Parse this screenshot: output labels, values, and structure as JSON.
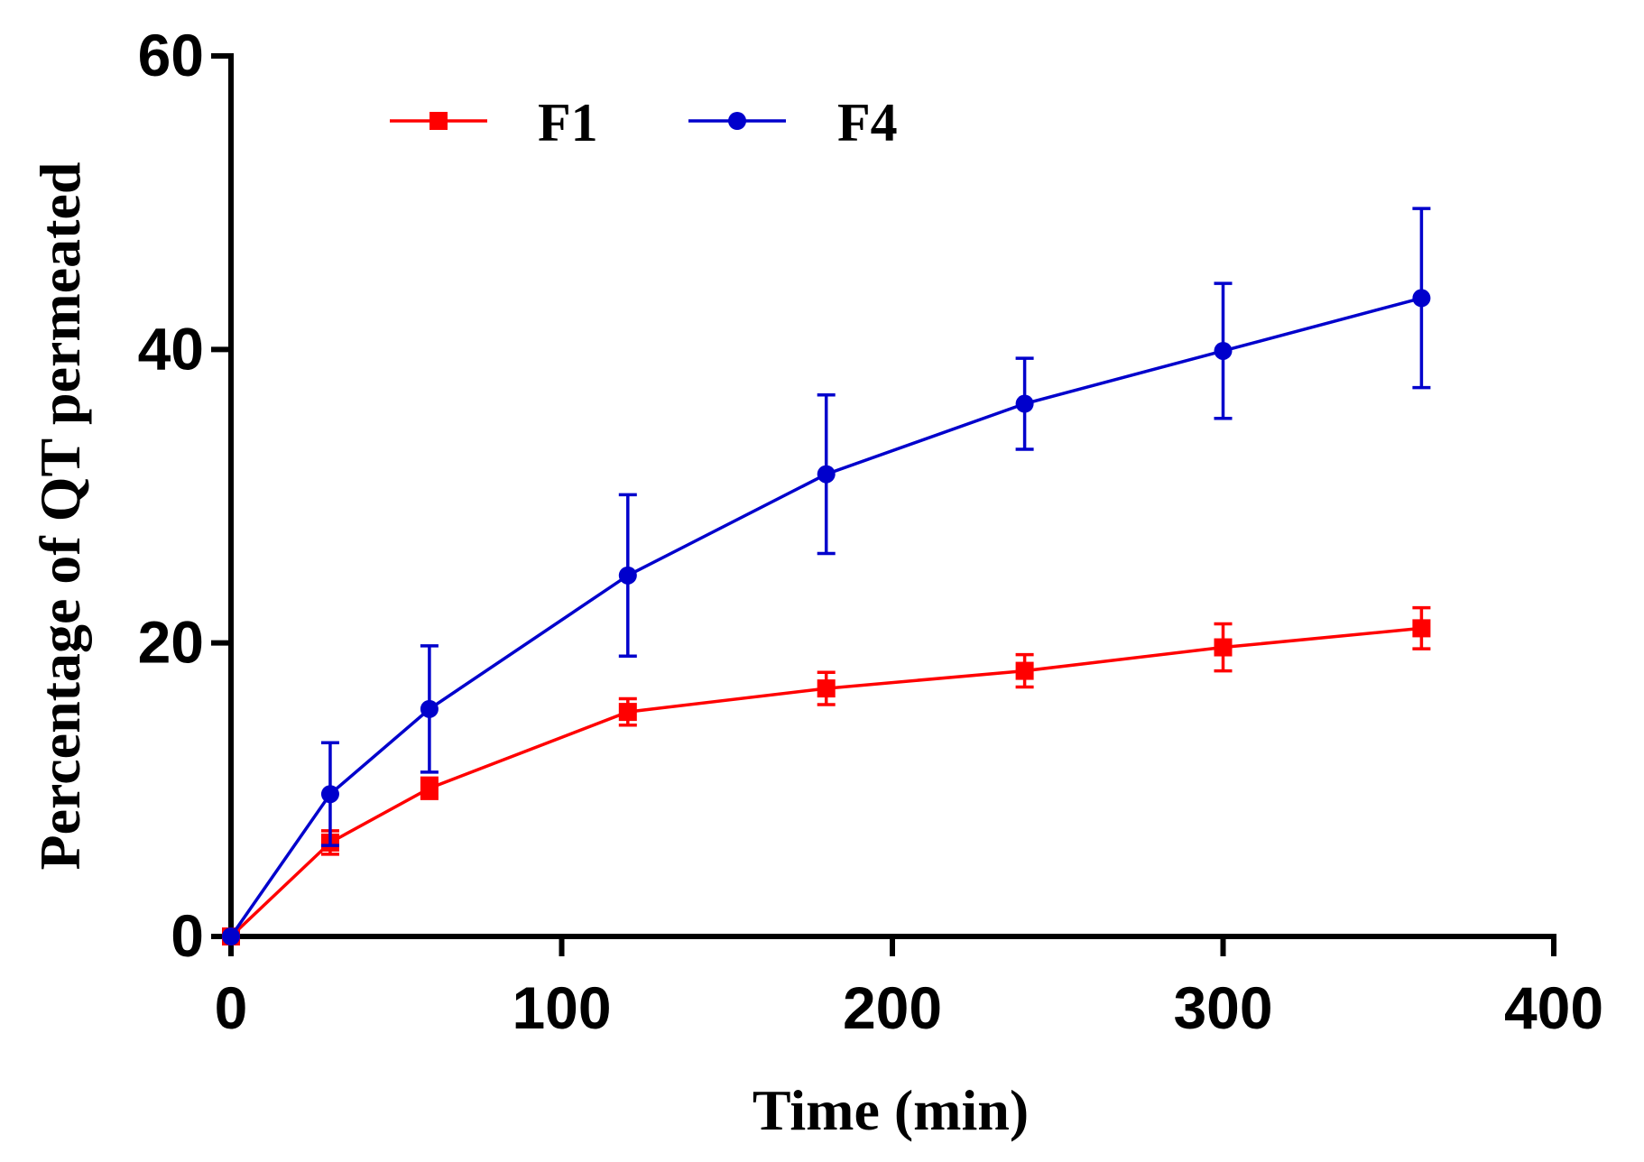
{
  "chart_data": {
    "type": "line",
    "title": "",
    "xlabel": "Time (min)",
    "ylabel": "Percentage of QT permeated",
    "xlim": [
      0,
      400
    ],
    "ylim": [
      0,
      60
    ],
    "xticks": [
      0,
      100,
      200,
      300,
      400
    ],
    "yticks": [
      0,
      20,
      40,
      60
    ],
    "xtick_labels": [
      "0",
      "100",
      "200",
      "300",
      "400"
    ],
    "ytick_labels": [
      "0",
      "20",
      "40",
      "60"
    ],
    "legend_position": "top-left",
    "series": [
      {
        "name": "F1",
        "color": "#ff0000",
        "marker": "square",
        "x": [
          0,
          30,
          60,
          120,
          180,
          240,
          300,
          360
        ],
        "y": [
          0,
          6.4,
          10.1,
          15.3,
          16.9,
          18.1,
          19.7,
          21.0
        ],
        "err": [
          0,
          0.8,
          0.7,
          0.9,
          1.1,
          1.1,
          1.6,
          1.4
        ]
      },
      {
        "name": "F4",
        "color": "#0000cc",
        "marker": "circle",
        "x": [
          0,
          30,
          60,
          120,
          180,
          240,
          300,
          360
        ],
        "y": [
          0,
          9.7,
          15.5,
          24.6,
          31.5,
          36.3,
          39.9,
          43.5
        ],
        "err": [
          0,
          3.5,
          4.3,
          5.5,
          5.4,
          3.1,
          4.6,
          6.1
        ]
      }
    ]
  }
}
